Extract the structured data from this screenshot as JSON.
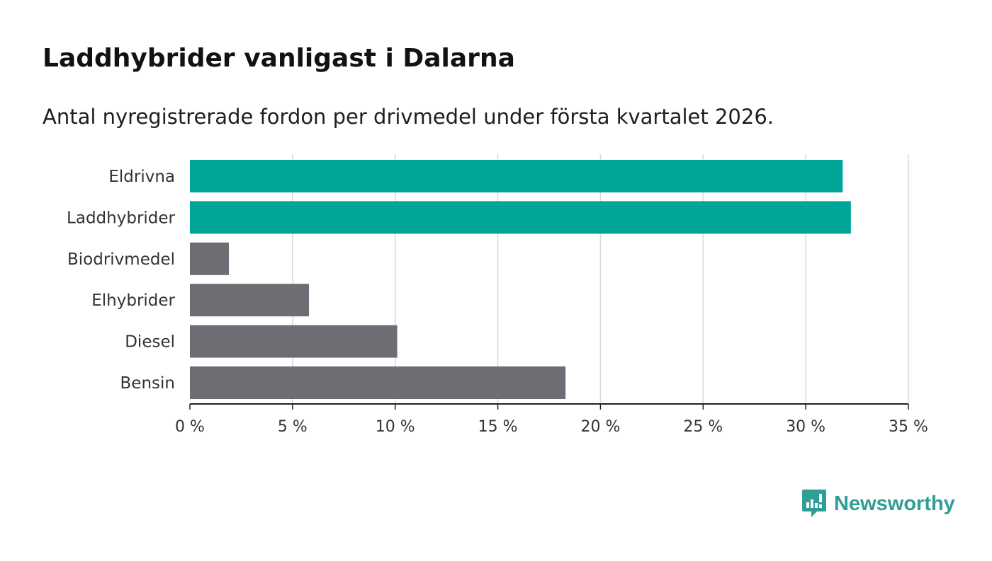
{
  "title": "Laddhybrider vanligast i Dalarna",
  "subtitle": "Antal nyregistrerade fordon per drivmedel under första kvartalet 2026.",
  "brand": {
    "name": "Newsworthy",
    "icon": "newsworthy-logo-icon",
    "color": "#2e9e96"
  },
  "colors": {
    "highlight": "#00a59a",
    "default": "#6e6d73",
    "grid": "#d9d9d9",
    "axis": "#222222"
  },
  "chart_data": {
    "type": "bar",
    "orientation": "horizontal",
    "title": "Laddhybrider vanligast i Dalarna",
    "subtitle": "Antal nyregistrerade fordon per drivmedel under första kvartalet 2026.",
    "xlabel": "",
    "ylabel": "",
    "categories": [
      "Eldrivna",
      "Laddhybrider",
      "Biodrivmedel",
      "Elhybrider",
      "Diesel",
      "Bensin"
    ],
    "values": [
      31.8,
      32.2,
      1.9,
      5.8,
      10.1,
      18.3
    ],
    "highlighted": [
      true,
      true,
      false,
      false,
      false,
      false
    ],
    "xlim": [
      0,
      35
    ],
    "ticks": [
      0,
      5,
      10,
      15,
      20,
      25,
      30,
      35
    ],
    "tick_labels": [
      "0 %",
      "5 %",
      "10 %",
      "15 %",
      "20 %",
      "25 %",
      "30 %",
      "35 %"
    ],
    "grid": true,
    "legend": false
  }
}
